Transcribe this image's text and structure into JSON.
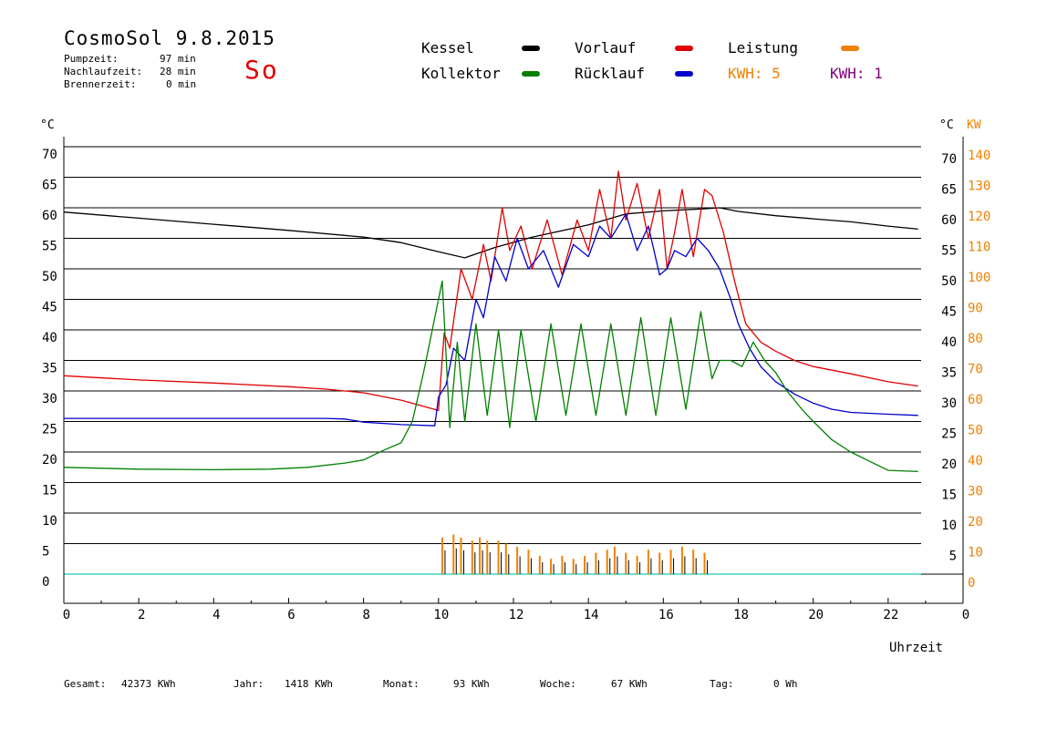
{
  "header": {
    "title": "CosmoSol 9.8.2015",
    "day": "So",
    "stats": [
      {
        "label": "Pumpzeit:",
        "value": "97 min"
      },
      {
        "label": "Nachlaufzeit:",
        "value": "28 min"
      },
      {
        "label": "Brennerzeit:",
        "value": "0 min"
      }
    ]
  },
  "legend": {
    "kessel": "Kessel",
    "vorlauf": "Vorlauf",
    "leistung": "Leistung",
    "kollektor": "Kollektor",
    "ruecklauf": "Rücklauf",
    "kwh_orange": "KWH: 5",
    "kwh_purple": "KWH: 1"
  },
  "colors": {
    "kessel": "#000000",
    "vorlauf": "#e00000",
    "leistung": "#f08000",
    "kollektor": "#008000",
    "ruecklauf": "#0000cc",
    "kwh_purple": "#800080",
    "baseline": "#40d0d0"
  },
  "footer": [
    {
      "label": "Gesamt:",
      "value": "42373 KWh"
    },
    {
      "label": "Jahr:",
      "value": "1418 KWh"
    },
    {
      "label": "Monat:",
      "value": "93 KWh"
    },
    {
      "label": "Woche:",
      "value": "67 KWh"
    },
    {
      "label": "Tag:",
      "value": "0 Wh"
    }
  ],
  "chart_data": {
    "type": "line",
    "xlabel": "Uhrzeit",
    "ylabel_left": "°C",
    "ylabel_right": "°C",
    "ylabel_right2": "KW",
    "xlim": [
      0,
      24
    ],
    "ylim": [
      0,
      70
    ],
    "ylim_kw": [
      0,
      140
    ],
    "grid": true,
    "x_ticks": [
      "0",
      "2",
      "4",
      "6",
      "8",
      "10",
      "12",
      "14",
      "16",
      "18",
      "20",
      "22",
      "0"
    ],
    "y_ticks_left": [
      "0",
      "5",
      "10",
      "15",
      "20",
      "25",
      "30",
      "35",
      "40",
      "45",
      "50",
      "55",
      "60",
      "65",
      "70"
    ],
    "y_ticks_right": [
      "5",
      "10",
      "15",
      "20",
      "25",
      "30",
      "35",
      "40",
      "45",
      "50",
      "55",
      "60",
      "65",
      "70"
    ],
    "y_ticks_kw": [
      "0",
      "10",
      "20",
      "30",
      "40",
      "50",
      "60",
      "70",
      "80",
      "90",
      "100",
      "110",
      "120",
      "130",
      "140"
    ],
    "series": [
      {
        "name": "Kessel",
        "color": "#000000",
        "x": [
          0,
          2,
          4,
          6,
          8,
          9,
          10,
          10.7,
          11.5,
          12.5,
          14,
          15,
          16,
          17,
          17.5,
          18,
          19,
          20,
          21,
          22,
          22.8
        ],
        "y": [
          59.3,
          58.3,
          57.3,
          56.3,
          55.2,
          54.3,
          52.8,
          51.8,
          53.5,
          55.2,
          57.2,
          59,
          59.5,
          59.8,
          60,
          59.4,
          58.7,
          58.2,
          57.7,
          57,
          56.5
        ]
      },
      {
        "name": "Vorlauf",
        "color": "#e00000",
        "x": [
          0,
          2,
          4,
          6,
          7,
          8,
          9,
          10,
          10.15,
          10.3,
          10.6,
          10.9,
          11.2,
          11.4,
          11.7,
          11.9,
          12.2,
          12.5,
          12.9,
          13.3,
          13.7,
          14,
          14.3,
          14.6,
          14.8,
          15,
          15.3,
          15.6,
          15.9,
          16.1,
          16.3,
          16.5,
          16.8,
          17.1,
          17.3,
          17.6,
          17.9,
          18.2,
          18.6,
          19,
          19.5,
          20,
          21,
          22,
          22.8
        ],
        "y": [
          32.5,
          31.8,
          31.3,
          30.7,
          30.3,
          29.7,
          28.5,
          26.8,
          39.5,
          37,
          50,
          45,
          54,
          48,
          60,
          53,
          57,
          50,
          58,
          49,
          58,
          53,
          63,
          55,
          66,
          58,
          64,
          55,
          63,
          50,
          56,
          63,
          52,
          63,
          62,
          56,
          48,
          41,
          38,
          36.5,
          35,
          34,
          32.8,
          31.5,
          30.8
        ]
      },
      {
        "name": "Rücklauf",
        "color": "#0000cc",
        "x": [
          0,
          2,
          4,
          6,
          7,
          7.5,
          8,
          9,
          9.9,
          10,
          10.2,
          10.4,
          10.7,
          11,
          11.2,
          11.5,
          11.8,
          12.1,
          12.4,
          12.8,
          13.2,
          13.6,
          14,
          14.3,
          14.6,
          15,
          15.3,
          15.6,
          15.9,
          16.1,
          16.3,
          16.6,
          16.9,
          17.2,
          17.5,
          17.8,
          18,
          18.3,
          18.6,
          19,
          19.5,
          20,
          20.5,
          21,
          22,
          22.8
        ],
        "y": [
          25.5,
          25.5,
          25.5,
          25.5,
          25.5,
          25.4,
          24.9,
          24.5,
          24.3,
          29,
          31,
          37,
          35,
          45,
          42,
          52,
          48,
          55,
          50,
          53,
          47,
          54,
          52,
          57,
          55,
          59,
          53,
          57,
          49,
          50,
          53,
          52,
          55,
          53,
          50,
          45,
          41,
          37,
          34,
          31.5,
          29.5,
          28,
          27,
          26.5,
          26.2,
          26
        ]
      },
      {
        "name": "Kollektor",
        "color": "#008000",
        "x": [
          0,
          2,
          4,
          5.5,
          6.5,
          7.5,
          8,
          8.5,
          9,
          9.3,
          9.6,
          9.9,
          10.1,
          10.3,
          10.5,
          10.7,
          11,
          11.3,
          11.6,
          11.9,
          12.2,
          12.6,
          13,
          13.4,
          13.8,
          14.2,
          14.6,
          15,
          15.4,
          15.8,
          16.2,
          16.6,
          17,
          17.3,
          17.5,
          17.8,
          18.1,
          18.4,
          18.7,
          19,
          19.3,
          19.7,
          20,
          20.5,
          21,
          21.5,
          22,
          22.8
        ],
        "y": [
          17.5,
          17.2,
          17.1,
          17.2,
          17.5,
          18.2,
          18.7,
          20.2,
          21.5,
          25,
          33,
          42,
          48,
          24,
          38,
          25,
          41,
          26,
          40,
          24,
          40,
          25,
          41,
          26,
          41,
          26,
          41,
          26,
          42,
          26,
          42,
          27,
          43,
          32,
          35,
          35,
          34,
          38,
          35,
          33,
          30,
          27,
          25,
          22,
          20,
          18.5,
          17,
          16.8
        ]
      }
    ],
    "leistung_bars": {
      "name": "Leistung",
      "color": "#f08000",
      "x": [
        10.1,
        10.4,
        10.6,
        10.9,
        11.1,
        11.3,
        11.6,
        11.8,
        12.1,
        12.4,
        12.7,
        13.0,
        13.3,
        13.6,
        13.9,
        14.2,
        14.5,
        14.7,
        15.0,
        15.3,
        15.6,
        15.9,
        16.2,
        16.5,
        16.8,
        17.1
      ],
      "y": [
        12,
        13,
        12,
        11,
        12,
        11,
        11,
        10,
        9,
        8,
        6,
        5,
        6,
        5,
        6,
        7,
        8,
        9,
        7,
        6,
        8,
        7,
        8,
        9,
        8,
        7
      ]
    }
  }
}
